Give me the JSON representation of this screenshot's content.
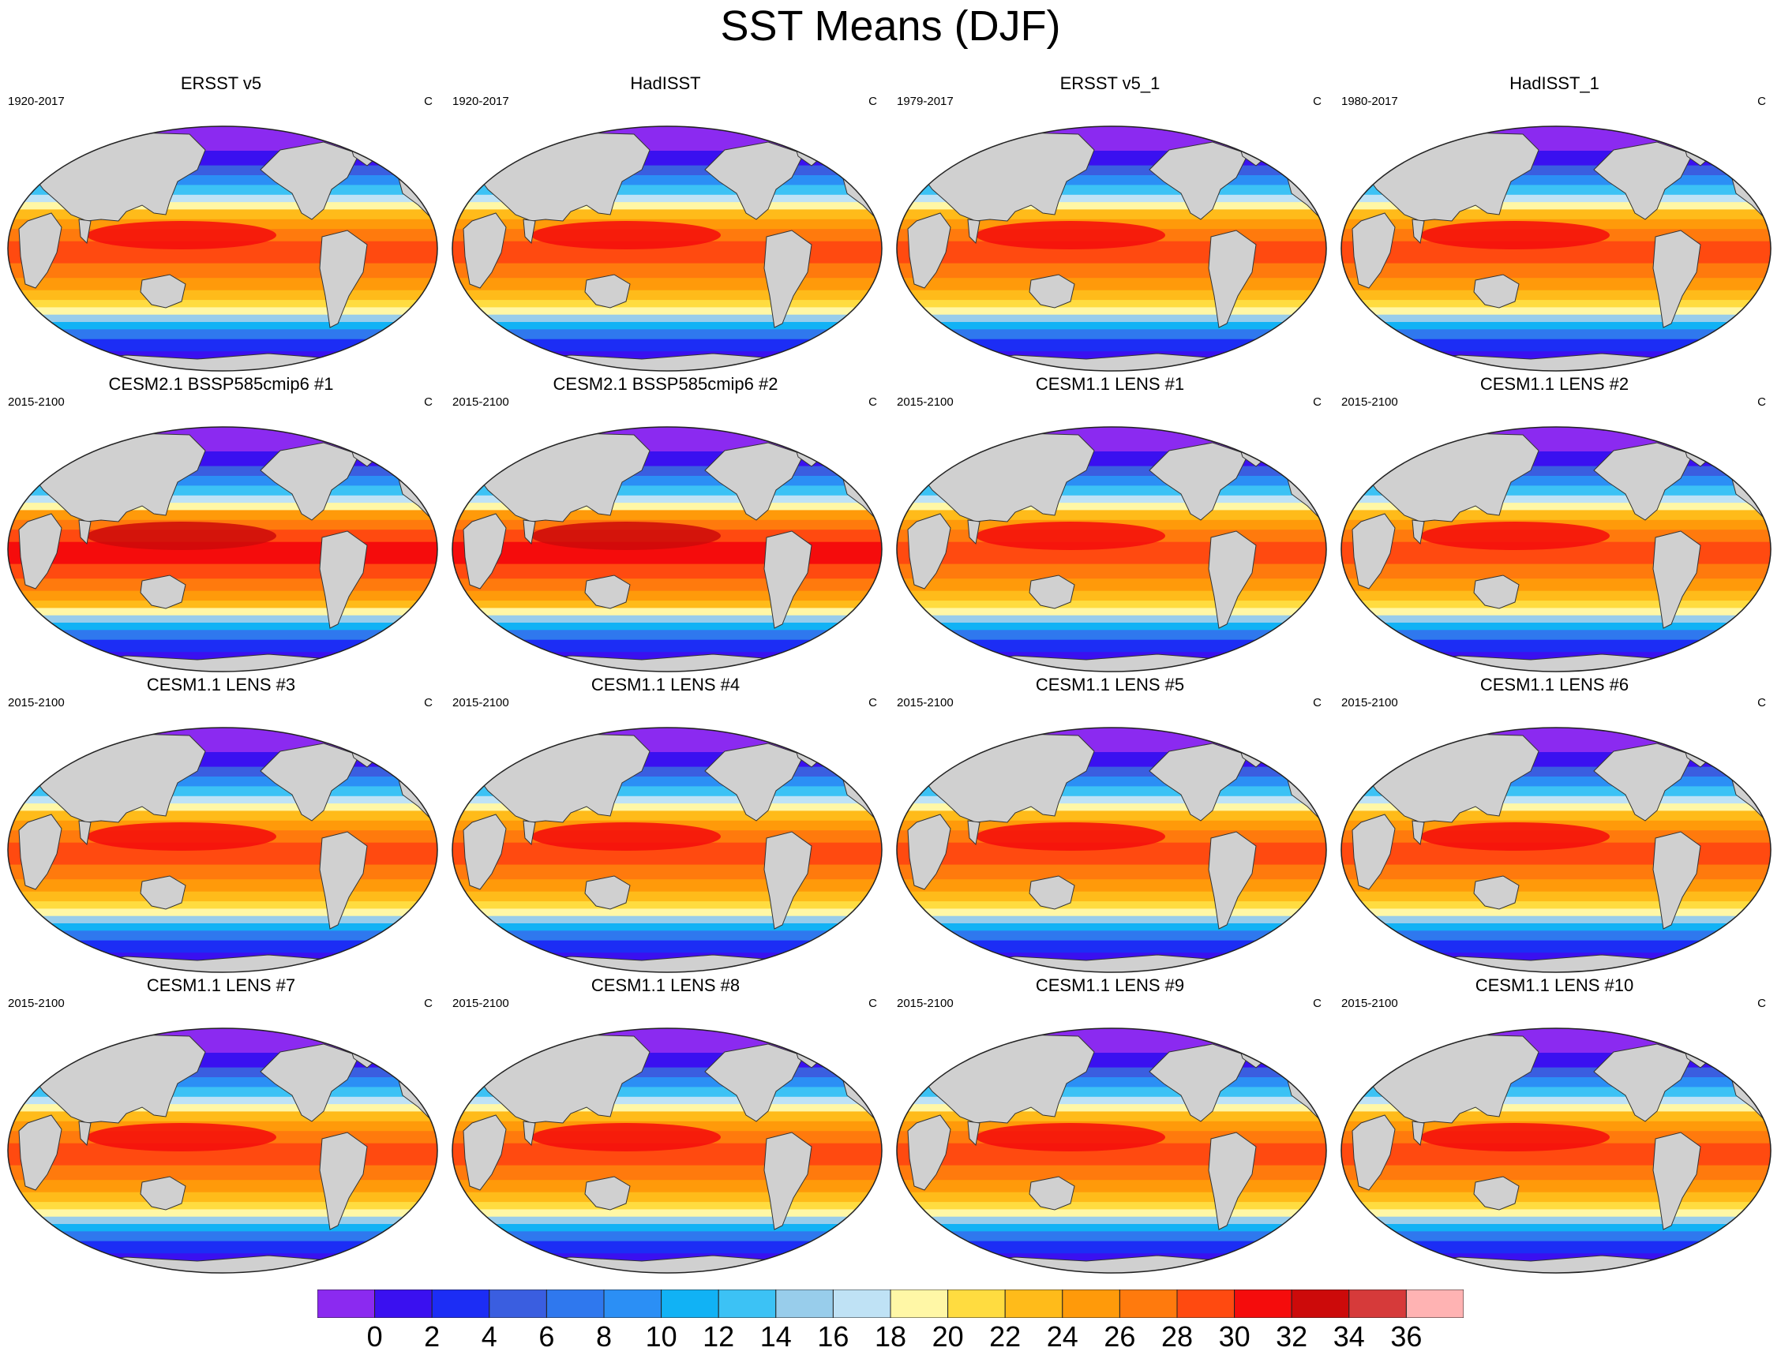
{
  "figure_title": "SST Means (DJF)",
  "units": "C",
  "panels": [
    {
      "title": "ERSST v5",
      "years": "1920-2017",
      "warmth": 0
    },
    {
      "title": "HadISST",
      "years": "1920-2017",
      "warmth": 0
    },
    {
      "title": "ERSST v5_1",
      "years": "1979-2017",
      "warmth": 0
    },
    {
      "title": "HadISST_1",
      "years": "1980-2017",
      "warmth": 0
    },
    {
      "title": "CESM2.1 BSSP585cmip6 #1",
      "years": "2015-2100",
      "warmth": 2
    },
    {
      "title": "CESM2.1 BSSP585cmip6 #2",
      "years": "2015-2100",
      "warmth": 2
    },
    {
      "title": "CESM1.1 LENS #1",
      "years": "2015-2100",
      "warmth": 1
    },
    {
      "title": "CESM1.1 LENS #2",
      "years": "2015-2100",
      "warmth": 1
    },
    {
      "title": "CESM1.1 LENS #3",
      "years": "2015-2100",
      "warmth": 1
    },
    {
      "title": "CESM1.1 LENS #4",
      "years": "2015-2100",
      "warmth": 1
    },
    {
      "title": "CESM1.1 LENS #5",
      "years": "2015-2100",
      "warmth": 1
    },
    {
      "title": "CESM1.1 LENS #6",
      "years": "2015-2100",
      "warmth": 1
    },
    {
      "title": "CESM1.1 LENS #7",
      "years": "2015-2100",
      "warmth": 1
    },
    {
      "title": "CESM1.1 LENS #8",
      "years": "2015-2100",
      "warmth": 1
    },
    {
      "title": "CESM1.1 LENS #9",
      "years": "2015-2100",
      "warmth": 1
    },
    {
      "title": "CESM1.1 LENS #10",
      "years": "2015-2100",
      "warmth": 1
    }
  ],
  "colorbar": {
    "tick_labels": [
      "0",
      "2",
      "4",
      "6",
      "8",
      "10",
      "12",
      "14",
      "16",
      "18",
      "20",
      "22",
      "24",
      "26",
      "28",
      "30",
      "32",
      "34",
      "36"
    ],
    "colors": [
      "#8b2af0",
      "#3a10f0",
      "#1c2df5",
      "#3a5ee0",
      "#2f78ee",
      "#2b8ff5",
      "#11b2f5",
      "#3cc2f5",
      "#98cdeb",
      "#bfe2f5",
      "#fff7a6",
      "#ffdc40",
      "#ffbb1a",
      "#ff9a0a",
      "#ff7a0d",
      "#ff4a10",
      "#f50c0c",
      "#cc0a0a",
      "#d63a3a",
      "#ffb3b3"
    ]
  },
  "land_color": "#d0d0d0"
}
